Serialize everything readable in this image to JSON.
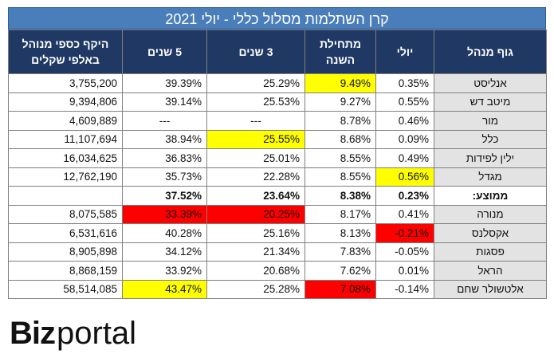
{
  "title": "קרן השתלמות מסלול כללי - יולי 2021",
  "headers": {
    "manager": "גוף מנהל",
    "july": "יולי",
    "ytd": "מתחילת השנה",
    "y3": "3 שנים",
    "y5": "5 שנים",
    "aum": "היקף כספי מנוהל באלפי שקלים"
  },
  "rows": [
    {
      "name": "אנליסט",
      "july": "0.35%",
      "ytd": "9.49%",
      "y3": "25.29%",
      "y5": "39.39%",
      "aum": "3,755,200",
      "hl": {
        "ytd": "yellow"
      }
    },
    {
      "name": "מיטב דש",
      "july": "0.55%",
      "ytd": "9.27%",
      "y3": "25.53%",
      "y5": "39.14%",
      "aum": "9,394,806",
      "hl": {}
    },
    {
      "name": "מור",
      "july": "0.46%",
      "ytd": "8.78%",
      "y3": "---",
      "y5": "---",
      "aum": "4,609,889",
      "hl": {}
    },
    {
      "name": "כלל",
      "july": "0.09%",
      "ytd": "8.68%",
      "y3": "25.55%",
      "y5": "38.94%",
      "aum": "11,107,694",
      "hl": {
        "y3": "yellow"
      }
    },
    {
      "name": "ילין לפידות",
      "july": "0.49%",
      "ytd": "8.55%",
      "y3": "25.01%",
      "y5": "36.83%",
      "aum": "16,034,625",
      "hl": {}
    },
    {
      "name": "מגדל",
      "july": "0.56%",
      "ytd": "8.55%",
      "y3": "22.28%",
      "y5": "35.73%",
      "aum": "12,762,190",
      "hl": {
        "july": "yellow"
      }
    },
    {
      "name": "ממוצע:",
      "july": "0.23%",
      "ytd": "8.38%",
      "y3": "23.64%",
      "y5": "37.52%",
      "aum": "",
      "hl": {},
      "avg": true
    },
    {
      "name": "מנורה",
      "july": "0.41%",
      "ytd": "8.17%",
      "y3": "20.25%",
      "y5": "33.39%",
      "aum": "8,075,585",
      "hl": {
        "y3": "red",
        "y5": "red"
      }
    },
    {
      "name": "אקסלנס",
      "july": "-0.21%",
      "ytd": "8.13%",
      "y3": "25.16%",
      "y5": "40.28%",
      "aum": "6,531,616",
      "hl": {
        "july": "red"
      }
    },
    {
      "name": "פסגות",
      "july": "-0.05%",
      "ytd": "7.83%",
      "y3": "21.34%",
      "y5": "34.12%",
      "aum": "8,905,898",
      "hl": {}
    },
    {
      "name": "הראל",
      "july": "0.01%",
      "ytd": "7.62%",
      "y3": "20.68%",
      "y5": "33.92%",
      "aum": "8,868,159",
      "hl": {}
    },
    {
      "name": "אלטשולר שחם",
      "july": "-0.14%",
      "ytd": "7.08%",
      "y3": "25.28%",
      "y5": "43.47%",
      "aum": "58,514,085",
      "hl": {
        "ytd": "red",
        "y5": "yellow"
      }
    }
  ],
  "logo": {
    "part1": "Biz",
    "part2": "portal"
  }
}
